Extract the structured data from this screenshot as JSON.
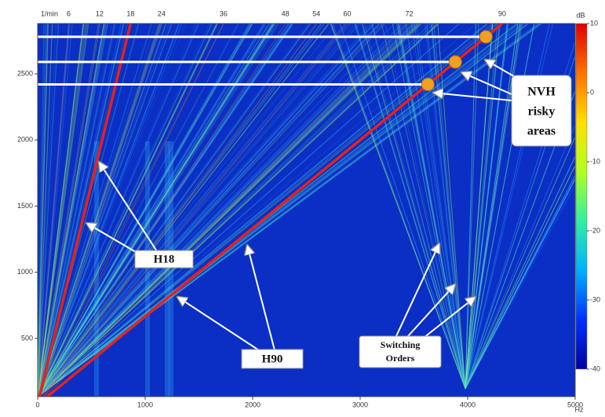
{
  "chart_data": {
    "type": "spectrogram",
    "x_label": "Hz",
    "y_label": "1/min",
    "xlim": [
      0,
      5000
    ],
    "ylim": [
      60,
      2880
    ],
    "xticks": [
      0,
      1000,
      2000,
      3000,
      4000,
      5000
    ],
    "yticks": [
      500,
      1000,
      1500,
      2000,
      2500
    ],
    "background": "#0b2fc4",
    "orders": [
      6,
      12,
      18,
      24,
      36,
      48,
      54,
      60,
      72,
      90
    ],
    "order_color": "#d8452e",
    "highlight_orders": [
      18,
      90
    ],
    "highlight_color": "#e8211a",
    "risk_order": 90,
    "risk_speeds": [
      2780,
      2590,
      2420
    ],
    "risk_color": "#f2a020",
    "colorbar": {
      "label": "dB",
      "clim": [
        -40,
        10
      ],
      "ticks": [
        10,
        0,
        -10,
        -20,
        -30,
        -40
      ],
      "colors": [
        "#0000a0",
        "#0030ff",
        "#00b0ff",
        "#30f0a0",
        "#b0ff20",
        "#ffe000",
        "#ff7000",
        "#e00000"
      ]
    },
    "annotations": {
      "h18": "H18",
      "h90": "H90",
      "nvh": [
        "NVH",
        "risky",
        "areas"
      ],
      "switching": [
        "Switching",
        "Orders"
      ]
    }
  }
}
